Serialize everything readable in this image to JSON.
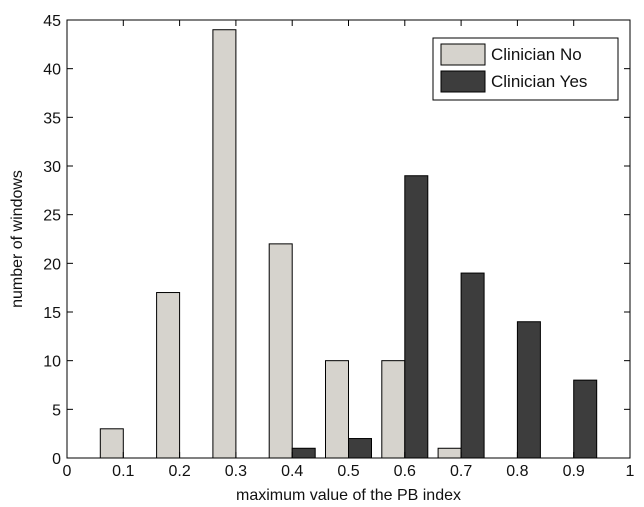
{
  "chart_data": {
    "type": "bar",
    "xlabel": "maximum value of the PB index",
    "ylabel": "number of windows",
    "xlim": [
      0,
      1
    ],
    "ylim": [
      0,
      45
    ],
    "xticks": [
      0,
      0.1,
      0.2,
      0.3,
      0.4,
      0.5,
      0.6,
      0.7,
      0.8,
      0.9,
      1
    ],
    "xtick_labels": [
      "0",
      "0.1",
      "0.2",
      "0.3",
      "0.4",
      "0.5",
      "0.6",
      "0.7",
      "0.8",
      "0.9",
      "1"
    ],
    "yticks": [
      0,
      5,
      10,
      15,
      20,
      25,
      30,
      35,
      40,
      45
    ],
    "ytick_labels": [
      "0",
      "5",
      "10",
      "15",
      "20",
      "25",
      "30",
      "35",
      "40",
      "45"
    ],
    "x": [
      0.1,
      0.2,
      0.3,
      0.4,
      0.5,
      0.6,
      0.7,
      0.8,
      0.9
    ],
    "series": [
      {
        "name": "Clinician No",
        "color": "#d6d3cd",
        "values": [
          3,
          17,
          44,
          22,
          10,
          10,
          1,
          0,
          0
        ]
      },
      {
        "name": "Clinician Yes",
        "color": "#3d3d3d",
        "values": [
          0,
          0,
          0,
          1,
          2,
          29,
          19,
          14,
          8
        ]
      }
    ],
    "legend_position": "top-right",
    "grid": false
  }
}
